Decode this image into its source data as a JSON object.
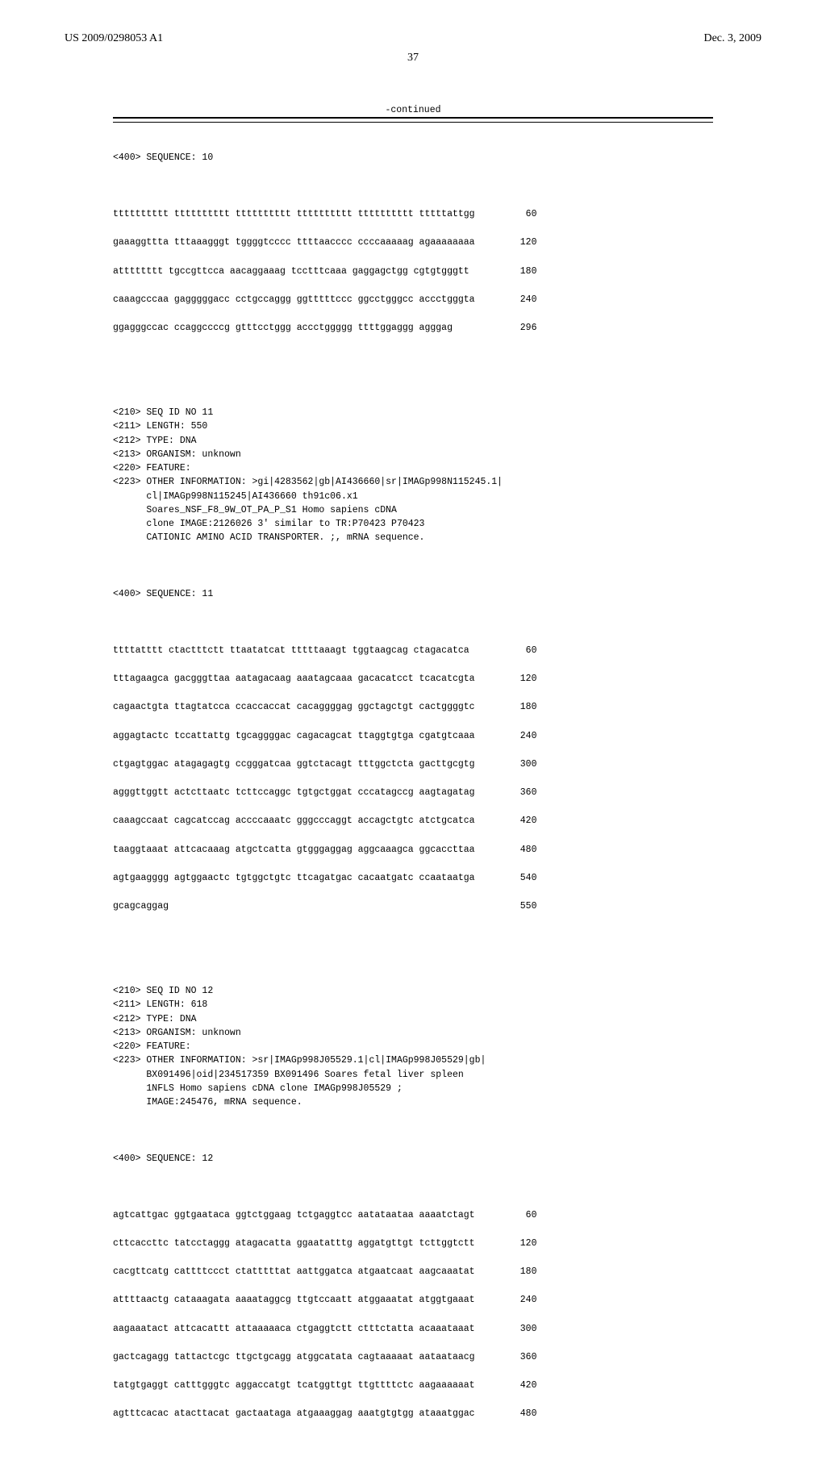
{
  "header": {
    "left": "US 2009/0298053 A1",
    "right": "Dec. 3, 2009"
  },
  "page_number": "37",
  "continued_label": "-continued",
  "seq10": {
    "label": "<400> SEQUENCE: 10",
    "rows": [
      {
        "t": "tttttttttt tttttttttt tttttttttt tttttttttt tttttttttt tttttattgg",
        "n": "60"
      },
      {
        "t": "gaaaggttta tttaaagggt tggggtcccc ttttaacccc ccccaaaaag agaaaaaaaa",
        "n": "120"
      },
      {
        "t": "atttttttt tgccgttcca aacaggaaag tcctttcaaa gaggagctgg cgtgtgggtt",
        "n": "180"
      },
      {
        "t": "caaagcccaa gagggggacc cctgccaggg ggtttttccc ggcctgggcc accctgggta",
        "n": "240"
      },
      {
        "t": "ggagggccac ccaggccccg gtttcctggg accctggggg ttttggaggg agggag",
        "n": "296"
      }
    ]
  },
  "seq11_meta": [
    "<210> SEQ ID NO 11",
    "<211> LENGTH: 550",
    "<212> TYPE: DNA",
    "<213> ORGANISM: unknown",
    "<220> FEATURE:",
    "<223> OTHER INFORMATION: >gi|4283562|gb|AI436660|sr|IMAGp998N115245.1|",
    "      cl|IMAGp998N115245|AI436660 th91c06.x1",
    "      Soares_NSF_F8_9W_OT_PA_P_S1 Homo sapiens cDNA",
    "      clone IMAGE:2126026 3' similar to TR:P70423 P70423",
    "      CATIONIC AMINO ACID TRANSPORTER. ;, mRNA sequence."
  ],
  "seq11": {
    "label": "<400> SEQUENCE: 11",
    "rows": [
      {
        "t": "ttttatttt ctactttctt ttaatatcat tttttaaagt tggtaagcag ctagacatca",
        "n": "60"
      },
      {
        "t": "tttagaagca gacgggttaa aatagacaag aaatagcaaa gacacatcct tcacatcgta",
        "n": "120"
      },
      {
        "t": "cagaactgta ttagtatcca ccaccaccat cacaggggag ggctagctgt cactggggtc",
        "n": "180"
      },
      {
        "t": "aggagtactc tccattattg tgcaggggac cagacagcat ttaggtgtga cgatgtcaaa",
        "n": "240"
      },
      {
        "t": "ctgagtggac atagagagtg ccgggatcaa ggtctacagt tttggctcta gacttgcgtg",
        "n": "300"
      },
      {
        "t": "agggttggtt actcttaatc tcttccaggc tgtgctggat cccatagccg aagtagatag",
        "n": "360"
      },
      {
        "t": "caaagccaat cagcatccag accccaaatc gggcccaggt accagctgtc atctgcatca",
        "n": "420"
      },
      {
        "t": "taaggtaaat attcacaaag atgctcatta gtgggaggag aggcaaagca ggcaccttaa",
        "n": "480"
      },
      {
        "t": "agtgaagggg agtggaactc tgtggctgtc ttcagatgac cacaatgatc ccaataatga",
        "n": "540"
      },
      {
        "t": "gcagcaggag",
        "n": "550"
      }
    ]
  },
  "seq12_meta": [
    "<210> SEQ ID NO 12",
    "<211> LENGTH: 618",
    "<212> TYPE: DNA",
    "<213> ORGANISM: unknown",
    "<220> FEATURE:",
    "<223> OTHER INFORMATION: >sr|IMAGp998J05529.1|cl|IMAGp998J05529|gb|",
    "      BX091496|oid|234517359 BX091496 Soares fetal liver spleen",
    "      1NFLS Homo sapiens cDNA clone IMAGp998J05529 ;",
    "      IMAGE:245476, mRNA sequence."
  ],
  "seq12": {
    "label": "<400> SEQUENCE: 12",
    "rows": [
      {
        "t": "agtcattgac ggtgaataca ggtctggaag tctgaggtcc aatataataa aaaatctagt",
        "n": "60"
      },
      {
        "t": "cttcaccttc tatcctaggg atagacatta ggaatatttg aggatgttgt tcttggtctt",
        "n": "120"
      },
      {
        "t": "cacgttcatg cattttccct ctatttttat aattggatca atgaatcaat aagcaaatat",
        "n": "180"
      },
      {
        "t": "attttaactg cataaagata aaaataggcg ttgtccaatt atggaaatat atggtgaaat",
        "n": "240"
      },
      {
        "t": "aagaaatact attcacattt attaaaaaca ctgaggtctt ctttctatta acaaataaat",
        "n": "300"
      },
      {
        "t": "gactcagagg tattactcgc ttgctgcagg atggcatata cagtaaaaat aataataacg",
        "n": "360"
      },
      {
        "t": "tatgtgaggt catttgggtc aggaccatgt tcatggttgt ttgttttctc aagaaaaaat",
        "n": "420"
      },
      {
        "t": "agtttcacac atacttacat gactaataga atgaaaggag aaatgtgtgg ataaatggac",
        "n": "480"
      }
    ]
  }
}
